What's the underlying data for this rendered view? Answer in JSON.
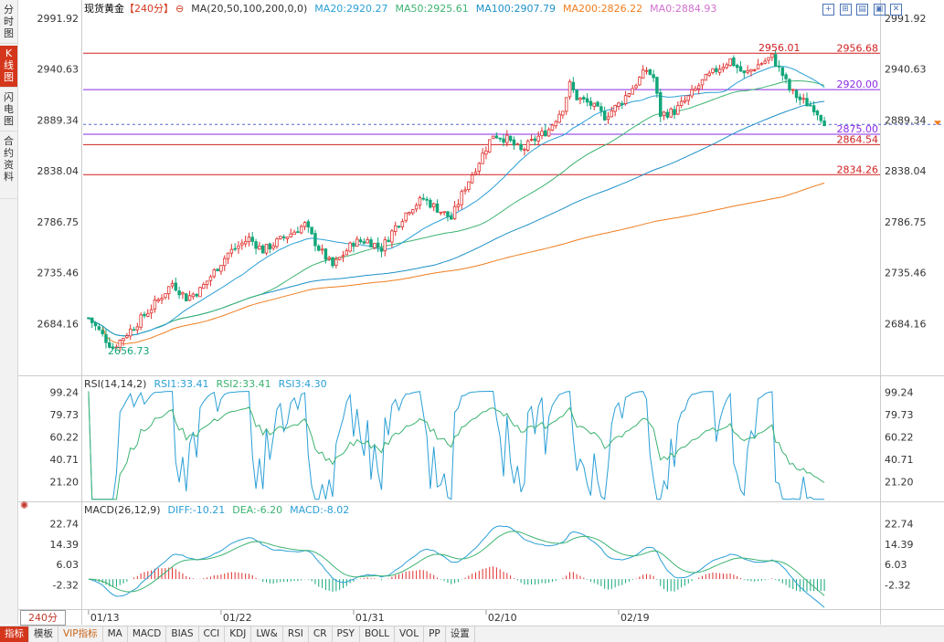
{
  "sidebar": {
    "tabs": [
      {
        "label": "分时图",
        "active": false
      },
      {
        "label": "K线图",
        "active": true
      },
      {
        "label": "闪电图",
        "active": false
      },
      {
        "label": "合约资料",
        "active": false
      }
    ]
  },
  "header": {
    "name": "现货黄金",
    "period": "【240分】",
    "ma_def": "MA(20,50,100,200,0,0)",
    "ma20": "MA20:2920.27",
    "ma50": "MA50:2925.61",
    "ma100": "MA100:2907.79",
    "ma200": "MA200:2826.22",
    "ma0": "MA0:2884.93"
  },
  "rsi_header": {
    "def": "RSI(14,14,2)",
    "rsi1": "RSI1:33.41",
    "rsi2": "RSI2:33.41",
    "rsi3": "RSI3:4.30"
  },
  "macd_header": {
    "def": "MACD(26,12,9)",
    "diff": "DIFF:-10.21",
    "dea": "DEA:-6.20",
    "macd": "MACD:-8.02"
  },
  "period_selector": "240分",
  "bottom_bar": [
    "指标",
    "模板",
    "VIP指标",
    "MA",
    "MACD",
    "BIAS",
    "CCI",
    "KDJ",
    "LW&",
    "RSI",
    "CR",
    "PSY",
    "BOLL",
    "VOL",
    "PP",
    "设置"
  ],
  "colors": {
    "up": "#e0302c",
    "down": "#13a67a",
    "ma20": "#2a9fd6",
    "ma50": "#3cb371",
    "ma100": "#1e90c8",
    "ma200": "#f07d1e",
    "hline_red": "#d02020",
    "hline_purple": "#8a2be2",
    "dashed": "#5566cc"
  },
  "chart_data": [
    {
      "type": "candlestick",
      "title": "现货黄金 240分",
      "x_ticks": [
        "01/13",
        "01/22",
        "01/31",
        "02/10",
        "02/19"
      ],
      "y_ticks": [
        2991.92,
        2940.63,
        2889.34,
        2838.04,
        2786.75,
        2735.46,
        2684.16
      ],
      "ylim": [
        2633.0,
        2991.92
      ],
      "candle_count": 200,
      "anchors": [
        [
          0,
          2690
        ],
        [
          5,
          2668
        ],
        [
          7,
          2660
        ],
        [
          14,
          2685
        ],
        [
          20,
          2708
        ],
        [
          24,
          2725
        ],
        [
          28,
          2710
        ],
        [
          32,
          2718
        ],
        [
          40,
          2755
        ],
        [
          46,
          2770
        ],
        [
          50,
          2758
        ],
        [
          58,
          2775
        ],
        [
          62,
          2784
        ],
        [
          66,
          2760
        ],
        [
          70,
          2742
        ],
        [
          76,
          2766
        ],
        [
          80,
          2768
        ],
        [
          84,
          2760
        ],
        [
          88,
          2782
        ],
        [
          92,
          2800
        ],
        [
          96,
          2810
        ],
        [
          100,
          2800
        ],
        [
          104,
          2790
        ],
        [
          108,
          2822
        ],
        [
          112,
          2848
        ],
        [
          116,
          2875
        ],
        [
          120,
          2870
        ],
        [
          124,
          2858
        ],
        [
          128,
          2870
        ],
        [
          132,
          2880
        ],
        [
          136,
          2902
        ],
        [
          138,
          2925
        ],
        [
          140,
          2912
        ],
        [
          144,
          2905
        ],
        [
          148,
          2893
        ],
        [
          152,
          2905
        ],
        [
          156,
          2922
        ],
        [
          160,
          2940
        ],
        [
          162,
          2932
        ],
        [
          164,
          2895
        ],
        [
          168,
          2898
        ],
        [
          172,
          2912
        ],
        [
          176,
          2928
        ],
        [
          180,
          2940
        ],
        [
          184,
          2950
        ],
        [
          188,
          2935
        ],
        [
          192,
          2945
        ],
        [
          196,
          2953
        ],
        [
          199,
          2935
        ],
        [
          201,
          2920
        ],
        [
          204,
          2910
        ],
        [
          208,
          2902
        ],
        [
          211,
          2888
        ]
      ],
      "moving_averages": [
        {
          "name": "MA20",
          "value": 2920.27
        },
        {
          "name": "MA50",
          "value": 2925.61
        },
        {
          "name": "MA100",
          "value": 2907.79
        },
        {
          "name": "MA200",
          "value": 2826.22
        },
        {
          "name": "MA0",
          "value": 2884.93
        }
      ],
      "horizontal_lines": [
        {
          "label": "2956.68",
          "value": 2956.68,
          "color": "red"
        },
        {
          "label": "2920.00",
          "value": 2920.0,
          "color": "purple"
        },
        {
          "label": "2875.00",
          "value": 2875.0,
          "color": "purple"
        },
        {
          "label": "2864.54",
          "value": 2864.54,
          "color": "red"
        },
        {
          "label": "2834.26",
          "value": 2834.26,
          "color": "red"
        }
      ],
      "annotations": [
        {
          "text": "2956.01",
          "value": 2956.01
        },
        {
          "text": "2656.73",
          "value": 2656.73
        }
      ],
      "current_price": 2884.93
    },
    {
      "type": "line",
      "title": "RSI(14,14,2)",
      "y_ticks": [
        99.24,
        79.73,
        60.22,
        40.71,
        21.2
      ],
      "ylim": [
        5,
        102
      ],
      "series": [
        {
          "name": "RSI1",
          "last": 33.41
        },
        {
          "name": "RSI2",
          "last": 33.41
        },
        {
          "name": "RSI3",
          "last": 4.3
        }
      ]
    },
    {
      "type": "line",
      "title": "MACD(26,12,9)",
      "y_ticks": [
        22.74,
        14.39,
        6.03,
        -2.32
      ],
      "ylim": [
        -12,
        26
      ],
      "series": [
        {
          "name": "DIFF",
          "last": -10.21
        },
        {
          "name": "DEA",
          "last": -6.2
        },
        {
          "name": "MACD",
          "last": -8.02
        }
      ]
    }
  ]
}
